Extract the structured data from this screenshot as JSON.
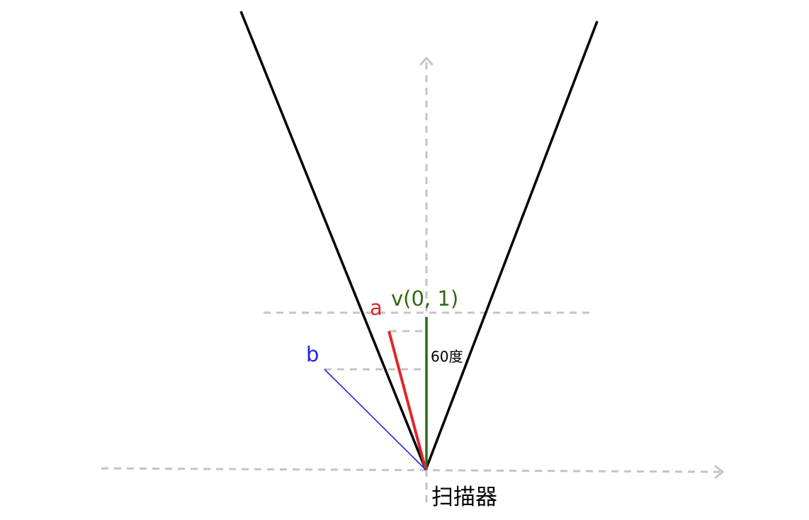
{
  "labels": {
    "vector_a": "a",
    "vector_b": "b",
    "vector_v": "v(0, 1)",
    "angle": "60度",
    "scanner": "扫描器"
  },
  "colors": {
    "vector_a": "#e0262d",
    "vector_b": "#2323e6",
    "vector_v": "#2e6a13",
    "cone": "#000000",
    "axes": "#c4c4c4"
  }
}
